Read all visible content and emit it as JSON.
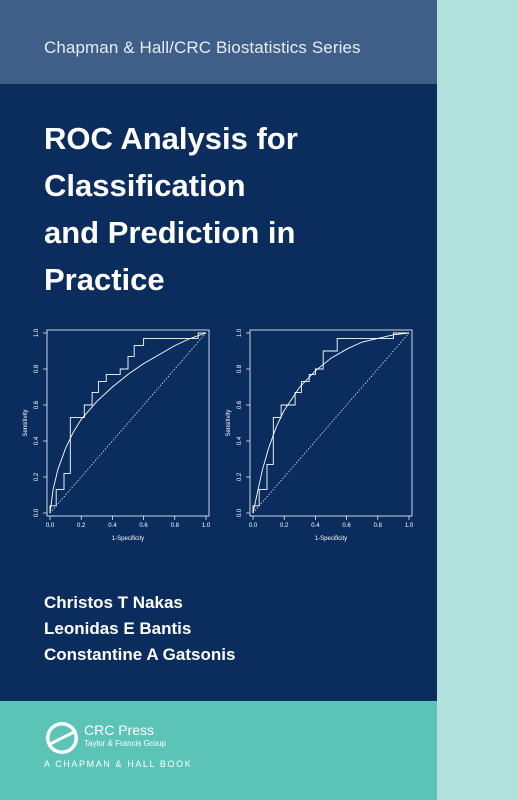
{
  "cover": {
    "series": "Chapman & Hall/CRC Biostatistics Series",
    "title_lines": [
      "ROC Analysis for",
      "Classification",
      "and Prediction in",
      "Practice"
    ],
    "authors": [
      "Christos T Nakas",
      "Leonidas E Bantis",
      "Constantine A Gatsonis"
    ],
    "publisher": {
      "name": "CRC Press",
      "group": "Taylor & Francis Group",
      "imprint": "A CHAPMAN & HALL BOOK"
    },
    "colors": {
      "navy": "#0a2d5e",
      "series_band": "#3f5e88",
      "teal_band": "#5bc4b7",
      "light_teal": "#b2e1db"
    }
  },
  "chart_data": [
    {
      "type": "line",
      "xlabel": "1-Specificity",
      "ylabel": "Sensitivity",
      "xlim": [
        0,
        1
      ],
      "ylim": [
        0,
        1
      ],
      "xticks": [
        "0.0",
        "0.2",
        "0.4",
        "0.6",
        "0.8",
        "1.0"
      ],
      "yticks": [
        "0.0",
        "0.2",
        "0.4",
        "0.6",
        "0.8",
        "1.0"
      ],
      "grid": false,
      "series": [
        {
          "style": "step",
          "x": [
            0,
            0,
            0.04,
            0.04,
            0.09,
            0.09,
            0.13,
            0.13,
            0.22,
            0.22,
            0.27,
            0.27,
            0.31,
            0.31,
            0.36,
            0.36,
            0.45,
            0.45,
            0.5,
            0.5,
            0.54,
            0.54,
            0.6,
            0.6,
            0.95,
            0.95,
            1
          ],
          "y": [
            0,
            0.04,
            0.04,
            0.13,
            0.13,
            0.22,
            0.22,
            0.53,
            0.53,
            0.6,
            0.6,
            0.67,
            0.67,
            0.73,
            0.73,
            0.77,
            0.77,
            0.8,
            0.8,
            0.87,
            0.87,
            0.93,
            0.93,
            0.97,
            0.97,
            1,
            1
          ]
        },
        {
          "style": "smooth",
          "x": [
            0,
            0.02,
            0.05,
            0.1,
            0.15,
            0.2,
            0.3,
            0.4,
            0.5,
            0.6,
            0.7,
            0.8,
            0.9,
            1
          ],
          "y": [
            0,
            0.13,
            0.24,
            0.36,
            0.45,
            0.52,
            0.62,
            0.7,
            0.77,
            0.83,
            0.88,
            0.93,
            0.97,
            1
          ]
        },
        {
          "style": "diagonal",
          "x": [
            0,
            1
          ],
          "y": [
            0,
            1
          ]
        }
      ]
    },
    {
      "type": "line",
      "xlabel": "1-Specificity",
      "ylabel": "Sensitivity",
      "xlim": [
        0,
        1
      ],
      "ylim": [
        0,
        1
      ],
      "xticks": [
        "0.0",
        "0.2",
        "0.4",
        "0.6",
        "0.8",
        "1.0"
      ],
      "yticks": [
        "0.0",
        "0.2",
        "0.4",
        "0.6",
        "0.8",
        "1.0"
      ],
      "grid": false,
      "series": [
        {
          "style": "step",
          "x": [
            0,
            0,
            0.04,
            0.04,
            0.09,
            0.09,
            0.13,
            0.13,
            0.18,
            0.18,
            0.27,
            0.27,
            0.31,
            0.31,
            0.36,
            0.36,
            0.4,
            0.4,
            0.45,
            0.45,
            0.54,
            0.54,
            0.9,
            0.9,
            0.95,
            0.95,
            1
          ],
          "y": [
            0,
            0.04,
            0.04,
            0.13,
            0.13,
            0.27,
            0.27,
            0.53,
            0.53,
            0.6,
            0.6,
            0.67,
            0.67,
            0.73,
            0.73,
            0.77,
            0.77,
            0.8,
            0.8,
            0.9,
            0.9,
            0.97,
            0.97,
            1,
            1,
            1,
            1
          ]
        },
        {
          "style": "smooth",
          "x": [
            0,
            0.03,
            0.06,
            0.1,
            0.15,
            0.2,
            0.3,
            0.4,
            0.5,
            0.6,
            0.7,
            0.8,
            0.9,
            1
          ],
          "y": [
            0,
            0.12,
            0.24,
            0.36,
            0.48,
            0.57,
            0.7,
            0.79,
            0.86,
            0.91,
            0.95,
            0.97,
            0.99,
            1
          ]
        },
        {
          "style": "diagonal",
          "x": [
            0,
            1
          ],
          "y": [
            0,
            1
          ]
        }
      ]
    }
  ]
}
